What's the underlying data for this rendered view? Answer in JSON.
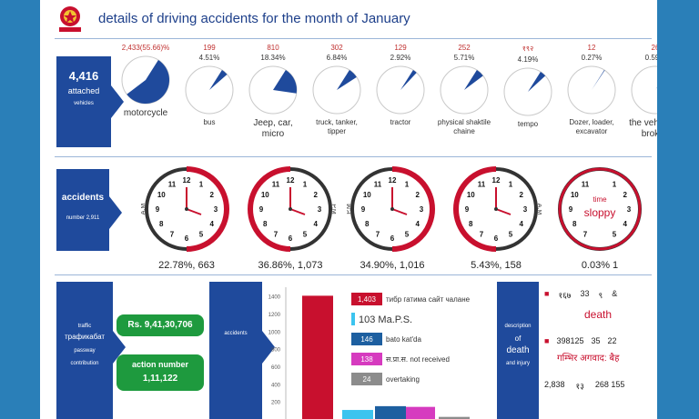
{
  "header": {
    "title": "details of driving accidents for the month of January"
  },
  "vehicles_panel": {
    "count": "4,416",
    "label1": "attached",
    "label2": "vehicles",
    "items": [
      {
        "count": "2,433(55.66)%",
        "pct": "",
        "label": "motorcycle",
        "big": true,
        "share": 0.5566
      },
      {
        "count": "199",
        "pct": "4.51%",
        "label": "bus",
        "big": false,
        "share": 0.0451
      },
      {
        "count": "810",
        "pct": "18.34%",
        "label": "Jeep, car, micro",
        "big": true,
        "share": 0.1834
      },
      {
        "count": "302",
        "pct": "6.84%",
        "label": "truck, tanker, tipper",
        "big": false,
        "share": 0.0684
      },
      {
        "count": "129",
        "pct": "2.92%",
        "label": "tractor",
        "big": false,
        "share": 0.0292
      },
      {
        "count": "252",
        "pct": "5.71%",
        "label": "physical shaktile chaine",
        "big": false,
        "share": 0.0571
      },
      {
        "count": "१९२",
        "pct": "4.19%",
        "label": "tempo",
        "big": false,
        "share": 0.0419
      },
      {
        "count": "12",
        "pct": "0.27%",
        "label": "Dozer, loader, excavator",
        "big": false,
        "share": 0.0027
      },
      {
        "count": "26",
        "pct": "0.59%",
        "label": "the vehicle is broken",
        "big": true,
        "share": 0.0059
      }
    ]
  },
  "accidents_panel": {
    "label": "accidents",
    "sub": "number 2,911",
    "clocks": [
      {
        "caption": "22.78%, 663",
        "tag": "A.M",
        "start": 0,
        "end": 6
      },
      {
        "caption": "36.86%, 1,073",
        "tag": "P.M",
        "start": 6,
        "end": 12
      },
      {
        "caption": "34.90%, 1,016",
        "tag": "P.M",
        "start": 0,
        "end": 6
      },
      {
        "caption": "5.43%, 158",
        "tag": "A.M",
        "start": 6,
        "end": 12
      },
      {
        "caption": "0.03% 1",
        "tag": "",
        "center1": "time",
        "center2": "sloppy",
        "start": 0,
        "end": 0
      }
    ]
  },
  "revenue_panel": {
    "label1": "traffic",
    "label2": "трафикабат",
    "label3": "passway",
    "label4": "contribution",
    "amount": "Rs. 9,41,30,706",
    "action_title": "action number",
    "action_value": "1,11,122"
  },
  "chart_panel": {
    "side_label": "accidents",
    "chart_data": {
      "type": "bar",
      "yticks": [
        "1400",
        "1200",
        "1000",
        "800",
        "600",
        "400",
        "200"
      ],
      "ylim": [
        0,
        1500
      ],
      "series": [
        {
          "value": 1403,
          "label": "1,403",
          "text": "тибр гатима сайт чалане",
          "color": "#c8102e"
        },
        {
          "value": 103,
          "label": "103 Ma.P.S.",
          "text": "",
          "color": "#3cc4ef"
        },
        {
          "value": 146,
          "label": "146",
          "text": "bato kat'da",
          "color": "#1d5fa0"
        },
        {
          "value": 138,
          "label": "138",
          "text": "स.प्रा.स. not received",
          "color": "#d63bbf"
        },
        {
          "value": 24,
          "label": "24",
          "text": "overtaking",
          "color": "#8c8c8c"
        }
      ]
    }
  },
  "death_panel": {
    "label1": "description",
    "label2": "of",
    "label3": "death",
    "label4": "and injury",
    "row1_nums": [
      "१६७",
      "33",
      "९",
      "&"
    ],
    "row1_title": "death",
    "row2_nums": [
      "398125",
      "35",
      "22"
    ],
    "row2_title": "गम्भिर अगवाद: बैह",
    "row3_nums": [
      "2,838",
      "१३",
      "268 155"
    ]
  },
  "colors": {
    "navy": "#1f4a9c",
    "red": "#c8102e",
    "green": "#1e9a3e",
    "background": "#2a7fb8"
  }
}
